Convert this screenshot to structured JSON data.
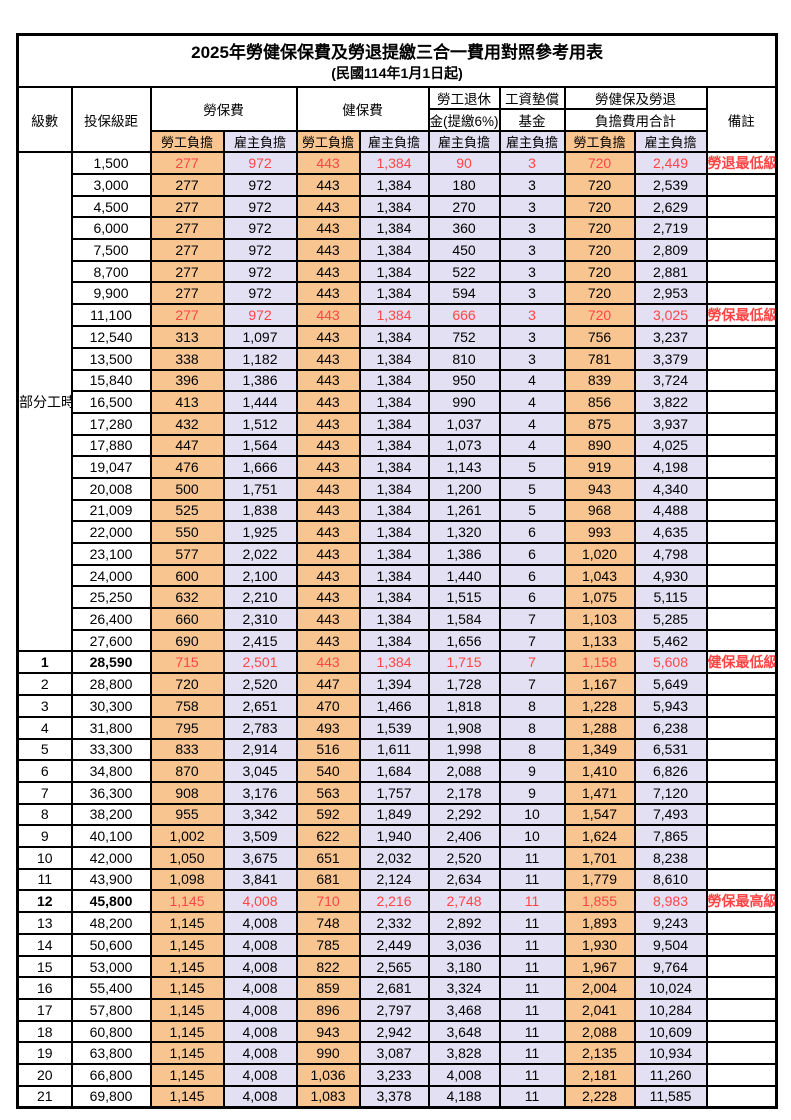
{
  "page": {
    "title_line1": "2025年勞健保保費及勞退提繳三合一費用對照參考用表",
    "title_line2": "(民國114年1月1日起)"
  },
  "colors": {
    "employee_column_bg": "#F8C591",
    "employer_column_bg": "#E2E0F2",
    "highlight_text": "#FF4545",
    "border": "#000000"
  },
  "header": {
    "level": "級數",
    "bracket": "投保級距",
    "labor_fee": "勞保費",
    "health_fee": "健保費",
    "pension_l1": "勞工退休",
    "pension_l2": "金(提繳6%)",
    "wage_fund_l1": "工資墊償",
    "wage_fund_l2": "基金",
    "total_l1": "勞健保及勞退",
    "total_l2": "負擔費用合計",
    "remark": "備註",
    "employee_label": "勞工負擔",
    "employer_label": "雇主負擔"
  },
  "part_time_label": "部分工時",
  "rows": [
    {
      "level": "",
      "bracket": "1,500",
      "cells": [
        "277",
        "972",
        "443",
        "1,384",
        "90",
        "3",
        "720",
        "2,449"
      ],
      "remark": "勞退最低級距",
      "hl": true,
      "bold": false
    },
    {
      "level": "",
      "bracket": "3,000",
      "cells": [
        "277",
        "972",
        "443",
        "1,384",
        "180",
        "3",
        "720",
        "2,539"
      ],
      "remark": "",
      "hl": false,
      "bold": false
    },
    {
      "level": "",
      "bracket": "4,500",
      "cells": [
        "277",
        "972",
        "443",
        "1,384",
        "270",
        "3",
        "720",
        "2,629"
      ],
      "remark": "",
      "hl": false,
      "bold": false
    },
    {
      "level": "",
      "bracket": "6,000",
      "cells": [
        "277",
        "972",
        "443",
        "1,384",
        "360",
        "3",
        "720",
        "2,719"
      ],
      "remark": "",
      "hl": false,
      "bold": false
    },
    {
      "level": "",
      "bracket": "7,500",
      "cells": [
        "277",
        "972",
        "443",
        "1,384",
        "450",
        "3",
        "720",
        "2,809"
      ],
      "remark": "",
      "hl": false,
      "bold": false
    },
    {
      "level": "",
      "bracket": "8,700",
      "cells": [
        "277",
        "972",
        "443",
        "1,384",
        "522",
        "3",
        "720",
        "2,881"
      ],
      "remark": "",
      "hl": false,
      "bold": false
    },
    {
      "level": "",
      "bracket": "9,900",
      "cells": [
        "277",
        "972",
        "443",
        "1,384",
        "594",
        "3",
        "720",
        "2,953"
      ],
      "remark": "",
      "hl": false,
      "bold": false
    },
    {
      "level": "",
      "bracket": "11,100",
      "cells": [
        "277",
        "972",
        "443",
        "1,384",
        "666",
        "3",
        "720",
        "3,025"
      ],
      "remark": "勞保最低級距",
      "hl": true,
      "bold": false
    },
    {
      "level": "",
      "bracket": "12,540",
      "cells": [
        "313",
        "1,097",
        "443",
        "1,384",
        "752",
        "3",
        "756",
        "3,237"
      ],
      "remark": "",
      "hl": false,
      "bold": false
    },
    {
      "level": "",
      "bracket": "13,500",
      "cells": [
        "338",
        "1,182",
        "443",
        "1,384",
        "810",
        "3",
        "781",
        "3,379"
      ],
      "remark": "",
      "hl": false,
      "bold": false
    },
    {
      "level": "",
      "bracket": "15,840",
      "cells": [
        "396",
        "1,386",
        "443",
        "1,384",
        "950",
        "4",
        "839",
        "3,724"
      ],
      "remark": "",
      "hl": false,
      "bold": false
    },
    {
      "level": "",
      "bracket": "16,500",
      "cells": [
        "413",
        "1,444",
        "443",
        "1,384",
        "990",
        "4",
        "856",
        "3,822"
      ],
      "remark": "",
      "hl": false,
      "bold": false
    },
    {
      "level": "",
      "bracket": "17,280",
      "cells": [
        "432",
        "1,512",
        "443",
        "1,384",
        "1,037",
        "4",
        "875",
        "3,937"
      ],
      "remark": "",
      "hl": false,
      "bold": false
    },
    {
      "level": "",
      "bracket": "17,880",
      "cells": [
        "447",
        "1,564",
        "443",
        "1,384",
        "1,073",
        "4",
        "890",
        "4,025"
      ],
      "remark": "",
      "hl": false,
      "bold": false
    },
    {
      "level": "",
      "bracket": "19,047",
      "cells": [
        "476",
        "1,666",
        "443",
        "1,384",
        "1,143",
        "5",
        "919",
        "4,198"
      ],
      "remark": "",
      "hl": false,
      "bold": false
    },
    {
      "level": "",
      "bracket": "20,008",
      "cells": [
        "500",
        "1,751",
        "443",
        "1,384",
        "1,200",
        "5",
        "943",
        "4,340"
      ],
      "remark": "",
      "hl": false,
      "bold": false
    },
    {
      "level": "",
      "bracket": "21,009",
      "cells": [
        "525",
        "1,838",
        "443",
        "1,384",
        "1,261",
        "5",
        "968",
        "4,488"
      ],
      "remark": "",
      "hl": false,
      "bold": false
    },
    {
      "level": "",
      "bracket": "22,000",
      "cells": [
        "550",
        "1,925",
        "443",
        "1,384",
        "1,320",
        "6",
        "993",
        "4,635"
      ],
      "remark": "",
      "hl": false,
      "bold": false
    },
    {
      "level": "",
      "bracket": "23,100",
      "cells": [
        "577",
        "2,022",
        "443",
        "1,384",
        "1,386",
        "6",
        "1,020",
        "4,798"
      ],
      "remark": "",
      "hl": false,
      "bold": false
    },
    {
      "level": "",
      "bracket": "24,000",
      "cells": [
        "600",
        "2,100",
        "443",
        "1,384",
        "1,440",
        "6",
        "1,043",
        "4,930"
      ],
      "remark": "",
      "hl": false,
      "bold": false
    },
    {
      "level": "",
      "bracket": "25,250",
      "cells": [
        "632",
        "2,210",
        "443",
        "1,384",
        "1,515",
        "6",
        "1,075",
        "5,115"
      ],
      "remark": "",
      "hl": false,
      "bold": false
    },
    {
      "level": "",
      "bracket": "26,400",
      "cells": [
        "660",
        "2,310",
        "443",
        "1,384",
        "1,584",
        "7",
        "1,103",
        "5,285"
      ],
      "remark": "",
      "hl": false,
      "bold": false
    },
    {
      "level": "",
      "bracket": "27,600",
      "cells": [
        "690",
        "2,415",
        "443",
        "1,384",
        "1,656",
        "7",
        "1,133",
        "5,462"
      ],
      "remark": "",
      "hl": false,
      "bold": false
    },
    {
      "level": "1",
      "bracket": "28,590",
      "cells": [
        "715",
        "2,501",
        "443",
        "1,384",
        "1,715",
        "7",
        "1,158",
        "5,608"
      ],
      "remark": "健保最低級距",
      "hl": true,
      "bold": true
    },
    {
      "level": "2",
      "bracket": "28,800",
      "cells": [
        "720",
        "2,520",
        "447",
        "1,394",
        "1,728",
        "7",
        "1,167",
        "5,649"
      ],
      "remark": "",
      "hl": false,
      "bold": false
    },
    {
      "level": "3",
      "bracket": "30,300",
      "cells": [
        "758",
        "2,651",
        "470",
        "1,466",
        "1,818",
        "8",
        "1,228",
        "5,943"
      ],
      "remark": "",
      "hl": false,
      "bold": false
    },
    {
      "level": "4",
      "bracket": "31,800",
      "cells": [
        "795",
        "2,783",
        "493",
        "1,539",
        "1,908",
        "8",
        "1,288",
        "6,238"
      ],
      "remark": "",
      "hl": false,
      "bold": false
    },
    {
      "level": "5",
      "bracket": "33,300",
      "cells": [
        "833",
        "2,914",
        "516",
        "1,611",
        "1,998",
        "8",
        "1,349",
        "6,531"
      ],
      "remark": "",
      "hl": false,
      "bold": false
    },
    {
      "level": "6",
      "bracket": "34,800",
      "cells": [
        "870",
        "3,045",
        "540",
        "1,684",
        "2,088",
        "9",
        "1,410",
        "6,826"
      ],
      "remark": "",
      "hl": false,
      "bold": false
    },
    {
      "level": "7",
      "bracket": "36,300",
      "cells": [
        "908",
        "3,176",
        "563",
        "1,757",
        "2,178",
        "9",
        "1,471",
        "7,120"
      ],
      "remark": "",
      "hl": false,
      "bold": false
    },
    {
      "level": "8",
      "bracket": "38,200",
      "cells": [
        "955",
        "3,342",
        "592",
        "1,849",
        "2,292",
        "10",
        "1,547",
        "7,493"
      ],
      "remark": "",
      "hl": false,
      "bold": false
    },
    {
      "level": "9",
      "bracket": "40,100",
      "cells": [
        "1,002",
        "3,509",
        "622",
        "1,940",
        "2,406",
        "10",
        "1,624",
        "7,865"
      ],
      "remark": "",
      "hl": false,
      "bold": false
    },
    {
      "level": "10",
      "bracket": "42,000",
      "cells": [
        "1,050",
        "3,675",
        "651",
        "2,032",
        "2,520",
        "11",
        "1,701",
        "8,238"
      ],
      "remark": "",
      "hl": false,
      "bold": false
    },
    {
      "level": "11",
      "bracket": "43,900",
      "cells": [
        "1,098",
        "3,841",
        "681",
        "2,124",
        "2,634",
        "11",
        "1,779",
        "8,610"
      ],
      "remark": "",
      "hl": false,
      "bold": false
    },
    {
      "level": "12",
      "bracket": "45,800",
      "cells": [
        "1,145",
        "4,008",
        "710",
        "2,216",
        "2,748",
        "11",
        "1,855",
        "8,983"
      ],
      "remark": "勞保最高級距",
      "hl": true,
      "bold": true
    },
    {
      "level": "13",
      "bracket": "48,200",
      "cells": [
        "1,145",
        "4,008",
        "748",
        "2,332",
        "2,892",
        "11",
        "1,893",
        "9,243"
      ],
      "remark": "",
      "hl": false,
      "bold": false
    },
    {
      "level": "14",
      "bracket": "50,600",
      "cells": [
        "1,145",
        "4,008",
        "785",
        "2,449",
        "3,036",
        "11",
        "1,930",
        "9,504"
      ],
      "remark": "",
      "hl": false,
      "bold": false
    },
    {
      "level": "15",
      "bracket": "53,000",
      "cells": [
        "1,145",
        "4,008",
        "822",
        "2,565",
        "3,180",
        "11",
        "1,967",
        "9,764"
      ],
      "remark": "",
      "hl": false,
      "bold": false
    },
    {
      "level": "16",
      "bracket": "55,400",
      "cells": [
        "1,145",
        "4,008",
        "859",
        "2,681",
        "3,324",
        "11",
        "2,004",
        "10,024"
      ],
      "remark": "",
      "hl": false,
      "bold": false
    },
    {
      "level": "17",
      "bracket": "57,800",
      "cells": [
        "1,145",
        "4,008",
        "896",
        "2,797",
        "3,468",
        "11",
        "2,041",
        "10,284"
      ],
      "remark": "",
      "hl": false,
      "bold": false
    },
    {
      "level": "18",
      "bracket": "60,800",
      "cells": [
        "1,145",
        "4,008",
        "943",
        "2,942",
        "3,648",
        "11",
        "2,088",
        "10,609"
      ],
      "remark": "",
      "hl": false,
      "bold": false
    },
    {
      "level": "19",
      "bracket": "63,800",
      "cells": [
        "1,145",
        "4,008",
        "990",
        "3,087",
        "3,828",
        "11",
        "2,135",
        "10,934"
      ],
      "remark": "",
      "hl": false,
      "bold": false
    },
    {
      "level": "20",
      "bracket": "66,800",
      "cells": [
        "1,145",
        "4,008",
        "1,036",
        "3,233",
        "4,008",
        "11",
        "2,181",
        "11,260"
      ],
      "remark": "",
      "hl": false,
      "bold": false
    },
    {
      "level": "21",
      "bracket": "69,800",
      "cells": [
        "1,145",
        "4,008",
        "1,083",
        "3,378",
        "4,188",
        "11",
        "2,228",
        "11,585"
      ],
      "remark": "",
      "hl": false,
      "bold": false
    }
  ]
}
